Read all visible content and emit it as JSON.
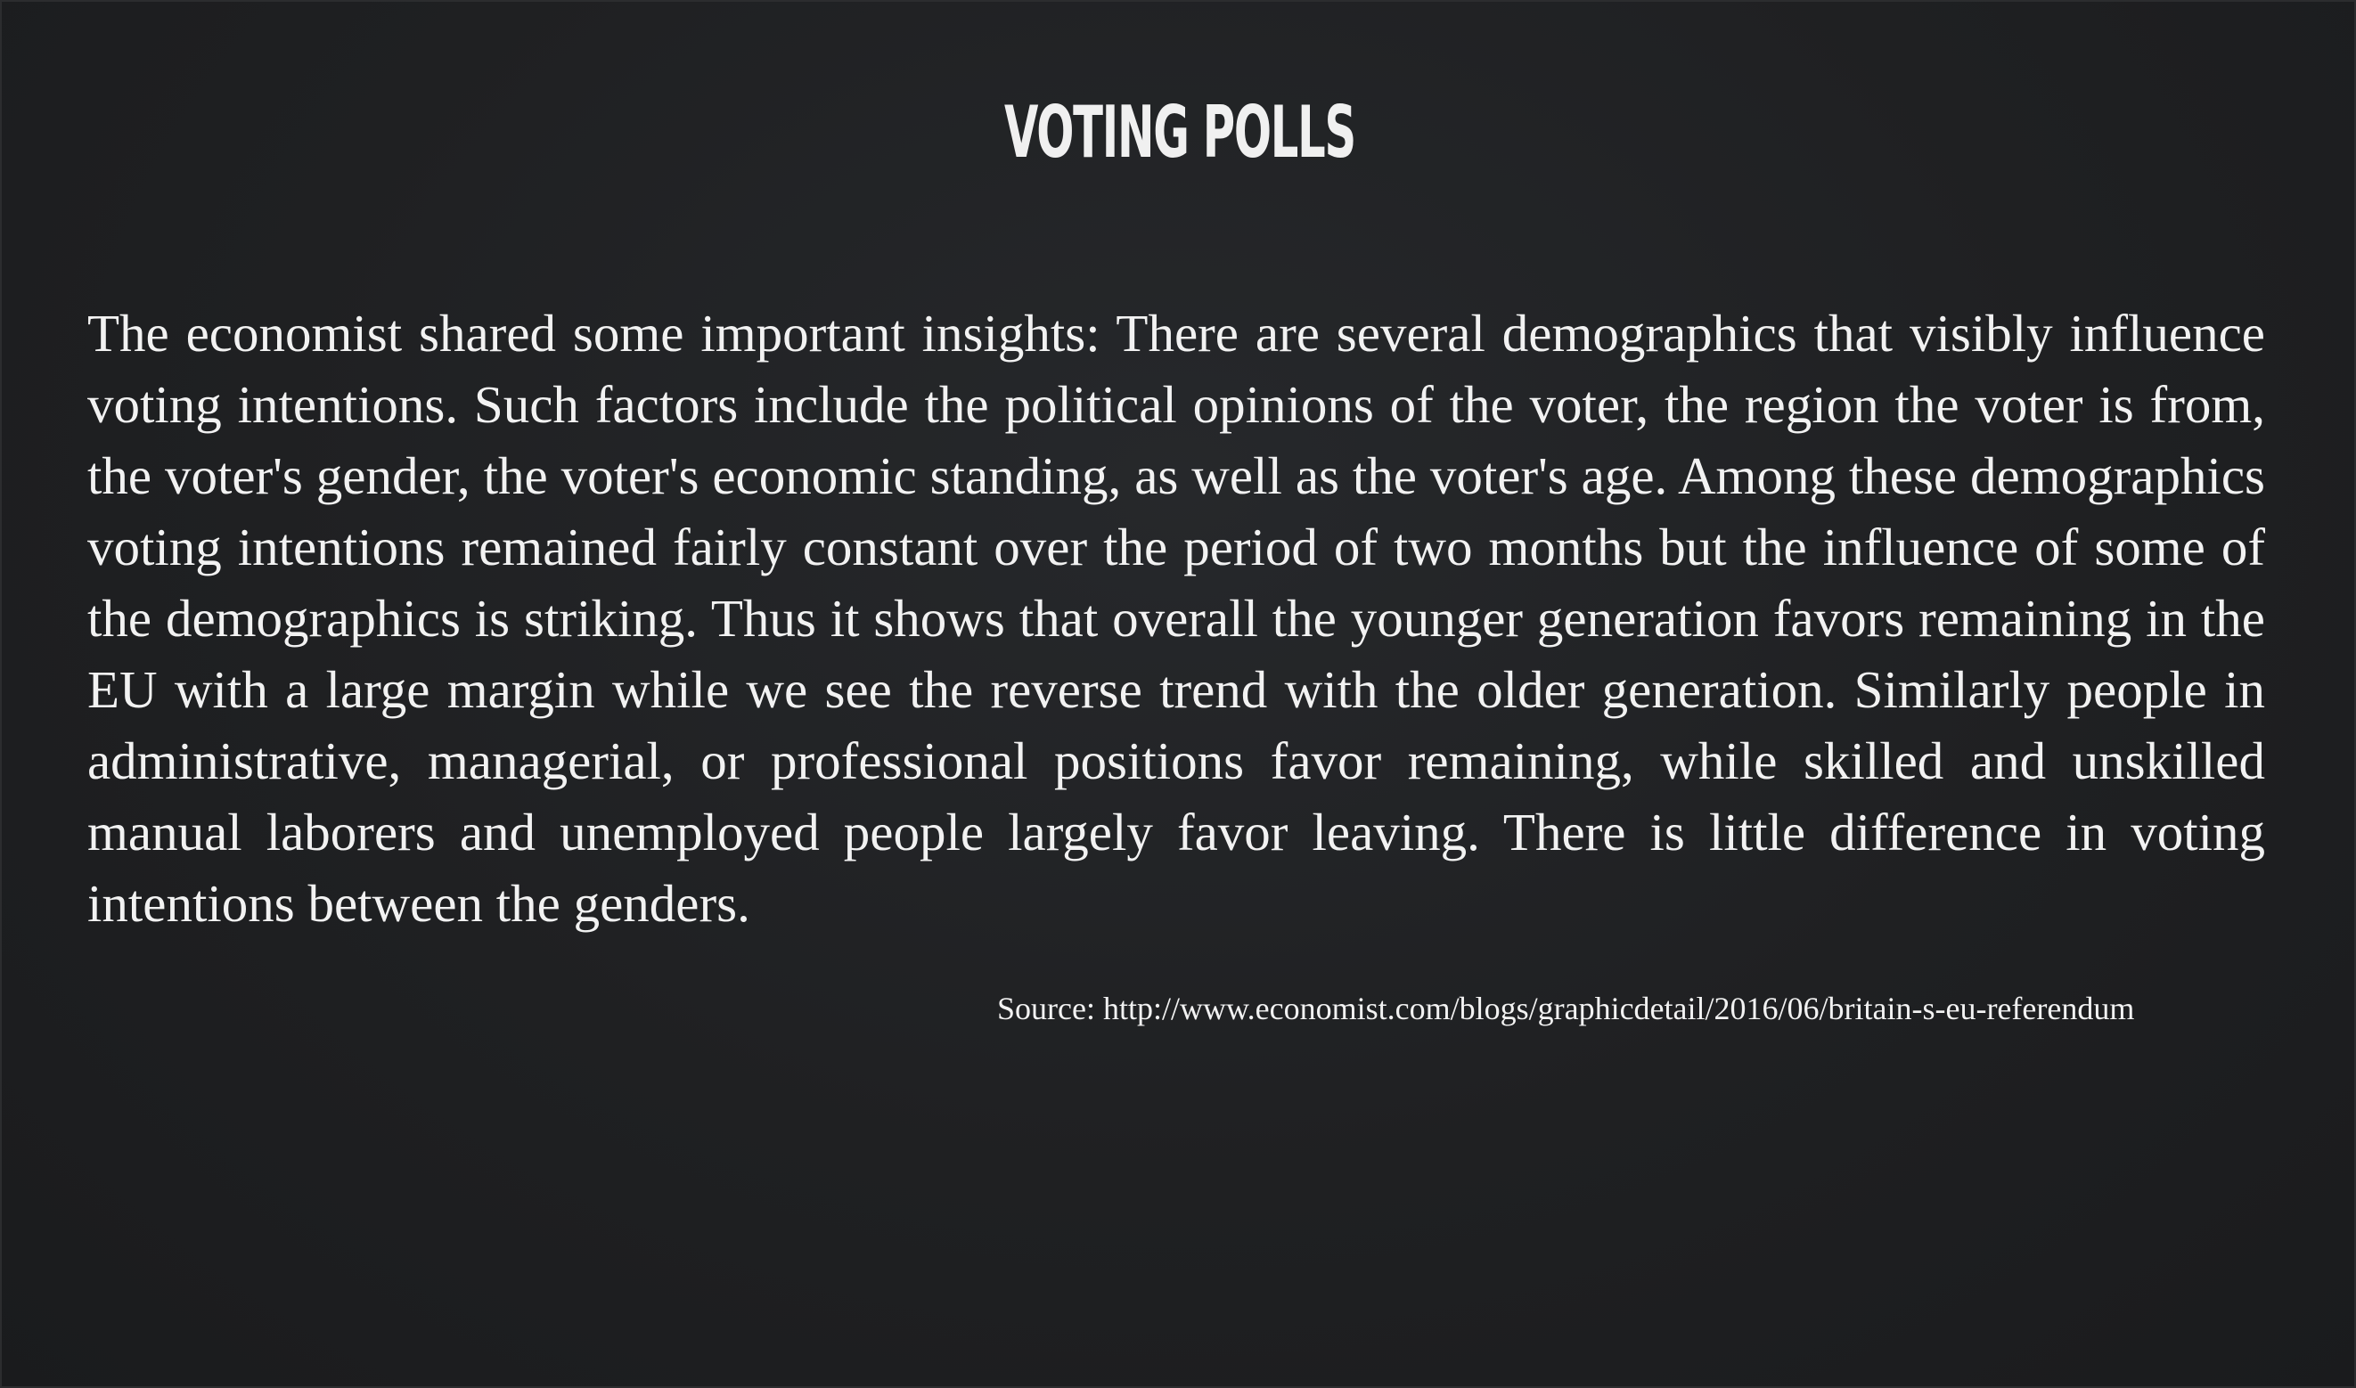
{
  "slide": {
    "title": "VOTING POLLS",
    "body": "The economist shared some important insights: There are several demographics that visibly influence voting intentions. Such factors include the political opinions of the voter, the region the voter is from, the voter's gender, the voter's economic standing, as well as the voter's age. Among these demographics voting intentions remained fairly constant over the period of two months but the influence of some of the demographics is striking. Thus it shows that overall the younger generation favors remaining in the EU with a large margin while we see the reverse trend with the older generation. Similarly people in administrative, managerial, or professional positions favor remaining, while skilled and unskilled manual laborers and unemployed people largely favor leaving. There is little difference in voting intentions between the genders.",
    "source": "Source: http://www.economist.com/blogs/graphicdetail/2016/06/britain-s-eu-referendum"
  },
  "colors": {
    "background": "#1f2022",
    "text": "#f2f2f2"
  }
}
